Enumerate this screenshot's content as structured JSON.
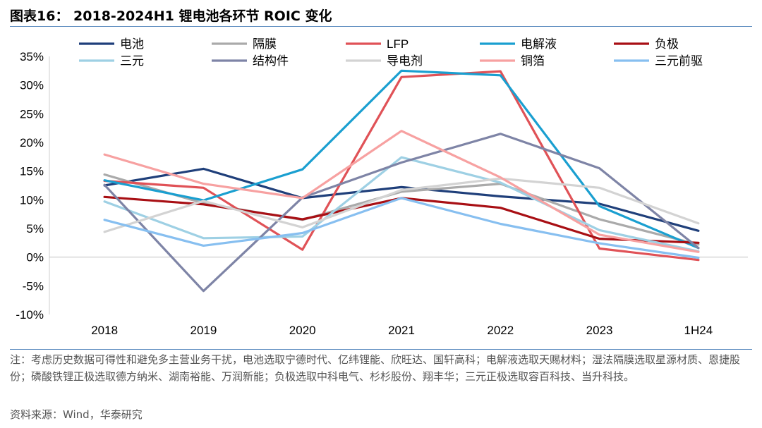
{
  "figure": {
    "title": "图表16： 2018-2024H1 锂电池各环节 ROIC 变化",
    "note": "注：考虑历史数据可得性和避免多主营业务干扰，电池选取宁德时代、亿纬锂能、欣旺达、国轩高科；电解液选取天赐材料；湿法隔膜选取星源材质、恩捷股份；磷酸铁锂正极选取德方纳米、湖南裕能、万润新能；负极选取中科电气、杉杉股份、翔丰华；三元正极选取容百科技、当升科技。",
    "source": "资料来源：Wind，华泰研究"
  },
  "chart_data": {
    "type": "line",
    "title": "2018-2024H1 锂电池各环节 ROIC 变化",
    "categories": [
      "2018",
      "2019",
      "2020",
      "2021",
      "2022",
      "2023",
      "1H24"
    ],
    "ylim": [
      -10,
      35
    ],
    "yticks": [
      "-10%",
      "-5%",
      "0%",
      "5%",
      "10%",
      "15%",
      "20%",
      "25%",
      "30%",
      "35%"
    ],
    "y_unit": "%",
    "grid": false,
    "legend_position": "top",
    "series": [
      {
        "name": "电池",
        "color": "#1f3f7a",
        "values": [
          12.5,
          15.4,
          10.3,
          12.2,
          10.6,
          9.3,
          4.6
        ]
      },
      {
        "name": "隔膜",
        "color": "#aaaaaa",
        "values": [
          14.4,
          9.4,
          6.5,
          11.4,
          12.8,
          6.6,
          2.2
        ]
      },
      {
        "name": "LFP",
        "color": "#e05257",
        "values": [
          13.3,
          12.1,
          1.3,
          31.4,
          32.4,
          1.5,
          -0.5
        ]
      },
      {
        "name": "电解液",
        "color": "#1a9fd0",
        "values": [
          13.4,
          9.9,
          15.3,
          32.5,
          31.7,
          8.9,
          1.6
        ]
      },
      {
        "name": "负极",
        "color": "#a80f14",
        "values": [
          10.5,
          9.2,
          6.6,
          10.3,
          8.6,
          3.2,
          2.5
        ]
      },
      {
        "name": "三元",
        "color": "#9ed0e4",
        "values": [
          9.7,
          3.3,
          3.6,
          17.4,
          13.0,
          4.7,
          1.0
        ]
      },
      {
        "name": "结构件",
        "color": "#7e84a6",
        "values": [
          12.6,
          -5.9,
          10.4,
          16.5,
          21.5,
          15.5,
          1.6
        ]
      },
      {
        "name": "导电剂",
        "color": "#d3d3d3",
        "values": [
          4.4,
          9.8,
          5.2,
          11.7,
          13.7,
          12.1,
          5.9
        ]
      },
      {
        "name": "铜箔",
        "color": "#f7a1a1",
        "values": [
          17.9,
          12.8,
          10.3,
          22.0,
          13.9,
          3.9,
          0.9
        ]
      },
      {
        "name": "三元前驱",
        "color": "#87bff0",
        "values": [
          6.5,
          2.0,
          4.2,
          10.3,
          5.8,
          2.4,
          -0.1
        ]
      }
    ]
  }
}
